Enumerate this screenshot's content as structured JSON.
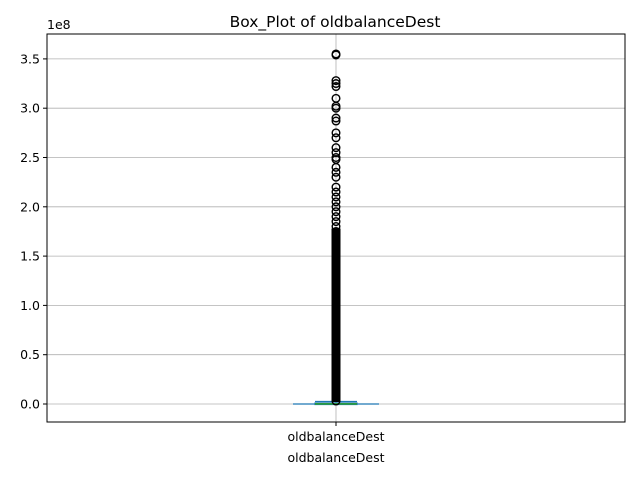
{
  "chart_data": {
    "type": "box",
    "title": "Box_Plot of oldbalanceDest",
    "xlabel": "oldbalanceDest",
    "ylabel": "",
    "categories": [
      "oldbalanceDest"
    ],
    "y_offset_label": "1e8",
    "ylim": [
      -0.175,
      3.74
    ],
    "yticks": [
      0.0,
      0.5,
      1.0,
      1.5,
      2.0,
      2.5,
      3.0,
      3.5
    ],
    "ytick_labels": [
      "0.0",
      "0.5",
      "1.0",
      "1.5",
      "2.0",
      "2.5",
      "3.0",
      "3.5"
    ],
    "grid": true,
    "box": {
      "min": 0.0,
      "q1": 0.0,
      "median": 0.0013,
      "q3": 0.01,
      "whisker_low": 0.0,
      "whisker_high": 0.025
    },
    "outliers": [
      0.03,
      0.1,
      0.2,
      0.3,
      0.4,
      0.5,
      0.6,
      0.7,
      0.8,
      0.9,
      1.0,
      1.1,
      1.2,
      1.3,
      1.4,
      1.5,
      1.6,
      1.7,
      1.75,
      1.8,
      1.85,
      1.9,
      1.95,
      2.0,
      2.05,
      2.1,
      2.15,
      2.2,
      2.3,
      2.35,
      2.4,
      2.48,
      2.5,
      2.55,
      2.6,
      2.7,
      2.75,
      2.87,
      2.9,
      3.0,
      3.02,
      3.1,
      3.22,
      3.25,
      3.28,
      3.54,
      3.55
    ],
    "colors": {
      "box": "#1f77b4",
      "median": "#2ca02c",
      "grid": "#b0b0b0",
      "outlier": "#000000"
    }
  }
}
